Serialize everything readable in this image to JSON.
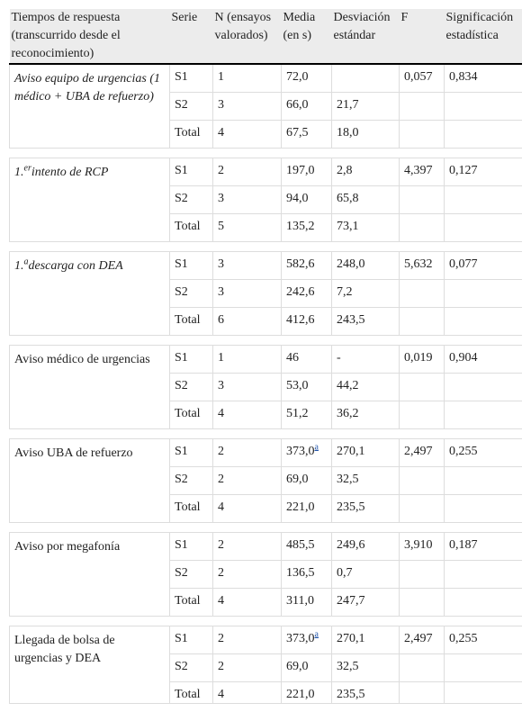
{
  "table": {
    "headers": [
      "Tiempos de respuesta (transcurrido desde el reconocimiento)",
      "Serie",
      "N (ensayos valorados)",
      "Media (en s)",
      "Desviación estándar",
      "F",
      "Significación estadística"
    ],
    "groups": [
      {
        "label": "Aviso equipo de urgencias (1 médico + UBA de refuerzo)",
        "italic": true,
        "rows": [
          {
            "serie": "S1",
            "n": "1",
            "media": "72,0",
            "f": "0,057",
            "sig": "0,834"
          },
          {
            "serie": "S2",
            "n": "3",
            "media": "66,0",
            "sd": "21,7"
          },
          {
            "serie": "Total",
            "n": "4",
            "media": "67,5",
            "sd": "18,0"
          }
        ]
      },
      {
        "label": "1.",
        "label_sup": "er",
        "label_after": "intento de RCP",
        "italic": true,
        "rows": [
          {
            "serie": "S1",
            "n": "2",
            "media": "197,0",
            "sd": "2,8",
            "f": "4,397",
            "sig": "0,127"
          },
          {
            "serie": "S2",
            "n": "3",
            "media": "94,0",
            "sd": "65,8"
          },
          {
            "serie": "Total",
            "n": "5",
            "media": "135,2",
            "sd": "73,1"
          }
        ]
      },
      {
        "label": "1.",
        "label_sup": "a",
        "label_after": "descarga con DEA",
        "italic": true,
        "rows": [
          {
            "serie": "S1",
            "n": "3",
            "media": "582,6",
            "sd": "248,0",
            "f": "5,632",
            "sig": "0,077"
          },
          {
            "serie": "S2",
            "n": "3",
            "media": "242,6",
            "sd": "7,2"
          },
          {
            "serie": "Total",
            "n": "6",
            "media": "412,6",
            "sd": "243,5"
          }
        ]
      },
      {
        "label": "Aviso médico de urgencias",
        "italic": false,
        "rows": [
          {
            "serie": "S1",
            "n": "1",
            "media": "46",
            "sd": "-",
            "f": "0,019",
            "sig": "0,904"
          },
          {
            "serie": "S2",
            "n": "3",
            "media": "53,0",
            "sd": "44,2"
          },
          {
            "serie": "Total",
            "n": "4",
            "media": "51,2",
            "sd": "36,2"
          }
        ]
      },
      {
        "label": "Aviso UBA de refuerzo",
        "italic": false,
        "rows": [
          {
            "serie": "S1",
            "n": "2",
            "media": "373,0",
            "media_note": "a",
            "sd": "270,1",
            "f": "2,497",
            "sig": "0,255"
          },
          {
            "serie": "S2",
            "n": "2",
            "media": "69,0",
            "sd": "32,5"
          },
          {
            "serie": "Total",
            "n": "4",
            "media": "221,0",
            "sd": "235,5"
          }
        ]
      },
      {
        "label": "Aviso por megafonía",
        "italic": false,
        "rows": [
          {
            "serie": "S1",
            "n": "2",
            "media": "485,5",
            "sd": "249,6",
            "f": "3,910",
            "sig": "0,187"
          },
          {
            "serie": "S2",
            "n": "2",
            "media": "136,5",
            "sd": "0,7"
          },
          {
            "serie": "Total",
            "n": "4",
            "media": "311,0",
            "sd": "247,7"
          }
        ]
      },
      {
        "label": "Llegada de bolsa de urgencias y DEA",
        "italic": false,
        "rows": [
          {
            "serie": "S1",
            "n": "2",
            "media": "373,0",
            "media_note": "a",
            "sd": "270,1",
            "f": "2,497",
            "sig": "0,255"
          },
          {
            "serie": "S2",
            "n": "2",
            "media": "69,0",
            "sd": "32,5"
          },
          {
            "serie": "Total",
            "n": "4",
            "media": "221,0",
            "sd": "235,5"
          }
        ]
      }
    ]
  }
}
